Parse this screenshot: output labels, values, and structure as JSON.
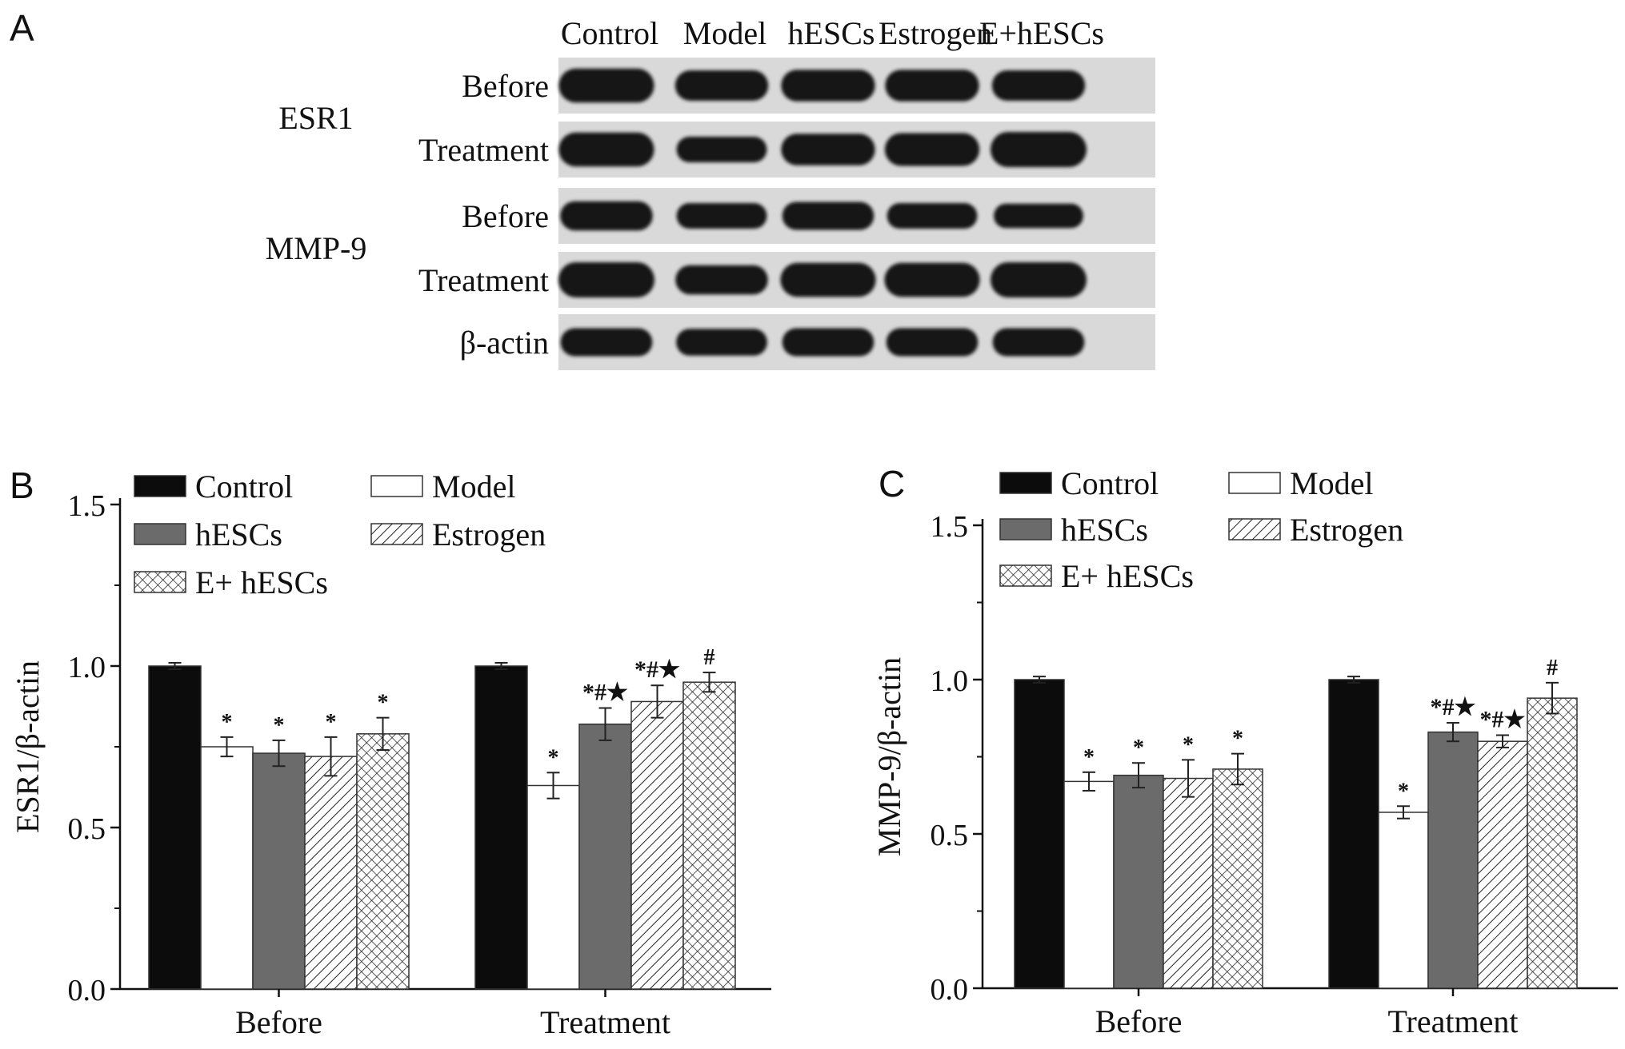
{
  "panels": {
    "a": "A",
    "b": "B",
    "c": "C"
  },
  "blot": {
    "lanes": [
      "Control",
      "Model",
      "hESCs",
      "Estrogen",
      "E+hESCs"
    ],
    "groups": [
      {
        "name": "ESR1",
        "rows": [
          {
            "label": "Before",
            "bands": [
              0.95,
              0.8,
              0.85,
              0.85,
              0.8
            ]
          },
          {
            "label": "Treatment",
            "bands": [
              0.95,
              0.6,
              0.85,
              0.9,
              1.0
            ]
          }
        ]
      },
      {
        "name": "MMP-9",
        "rows": [
          {
            "label": "Before",
            "bands": [
              0.75,
              0.6,
              0.7,
              0.6,
              0.55
            ]
          },
          {
            "label": "Treatment",
            "bands": [
              1.0,
              0.75,
              0.95,
              0.95,
              1.0
            ]
          }
        ]
      },
      {
        "name": "",
        "rows": [
          {
            "label": "β-actin",
            "bands": [
              0.7,
              0.65,
              0.7,
              0.7,
              0.7
            ]
          }
        ]
      }
    ]
  },
  "chart_data": [
    {
      "type": "bar",
      "title": "",
      "xlabel": "",
      "ylabel": "ESR1/β-actin",
      "ylim": [
        0,
        1.5
      ],
      "yticks": [
        "0.0",
        "0.5",
        "1.0",
        "1.5"
      ],
      "categories": [
        "Before",
        "Treatment"
      ],
      "series": [
        {
          "name": "Control",
          "pattern": "solid-black",
          "values": [
            1.0,
            1.0
          ],
          "errors": [
            0.01,
            0.01
          ],
          "marks": [
            "",
            ""
          ]
        },
        {
          "name": "Model",
          "pattern": "white",
          "values": [
            0.75,
            0.63
          ],
          "errors": [
            0.03,
            0.04
          ],
          "marks": [
            "*",
            "*"
          ]
        },
        {
          "name": "hESCs",
          "pattern": "solid-gray",
          "values": [
            0.73,
            0.82
          ],
          "errors": [
            0.04,
            0.05
          ],
          "marks": [
            "*",
            "*#★"
          ]
        },
        {
          "name": "Estrogen",
          "pattern": "diagonal-hatch",
          "values": [
            0.72,
            0.89
          ],
          "errors": [
            0.06,
            0.05
          ],
          "marks": [
            "*",
            "*#★"
          ]
        },
        {
          "name": "E+ hESCs",
          "pattern": "crosshatch",
          "values": [
            0.79,
            0.95
          ],
          "errors": [
            0.05,
            0.03
          ],
          "marks": [
            "*",
            "#"
          ]
        }
      ]
    },
    {
      "type": "bar",
      "title": "",
      "xlabel": "",
      "ylabel": "MMP-9/β-actin",
      "ylim": [
        0,
        1.5
      ],
      "yticks": [
        "0.0",
        "0.5",
        "1.0",
        "1.5"
      ],
      "categories": [
        "Before",
        "Treatment"
      ],
      "series": [
        {
          "name": "Control",
          "pattern": "solid-black",
          "values": [
            1.0,
            1.0
          ],
          "errors": [
            0.01,
            0.01
          ],
          "marks": [
            "",
            ""
          ]
        },
        {
          "name": "Model",
          "pattern": "white",
          "values": [
            0.67,
            0.57
          ],
          "errors": [
            0.03,
            0.02
          ],
          "marks": [
            "*",
            "*"
          ]
        },
        {
          "name": "hESCs",
          "pattern": "solid-gray",
          "values": [
            0.69,
            0.83
          ],
          "errors": [
            0.04,
            0.03
          ],
          "marks": [
            "*",
            "*#★"
          ]
        },
        {
          "name": "Estrogen",
          "pattern": "diagonal-hatch",
          "values": [
            0.68,
            0.8
          ],
          "errors": [
            0.06,
            0.02
          ],
          "marks": [
            "*",
            "*#★"
          ]
        },
        {
          "name": "E+ hESCs",
          "pattern": "crosshatch",
          "values": [
            0.71,
            0.94
          ],
          "errors": [
            0.05,
            0.05
          ],
          "marks": [
            "*",
            "#"
          ]
        }
      ]
    }
  ]
}
